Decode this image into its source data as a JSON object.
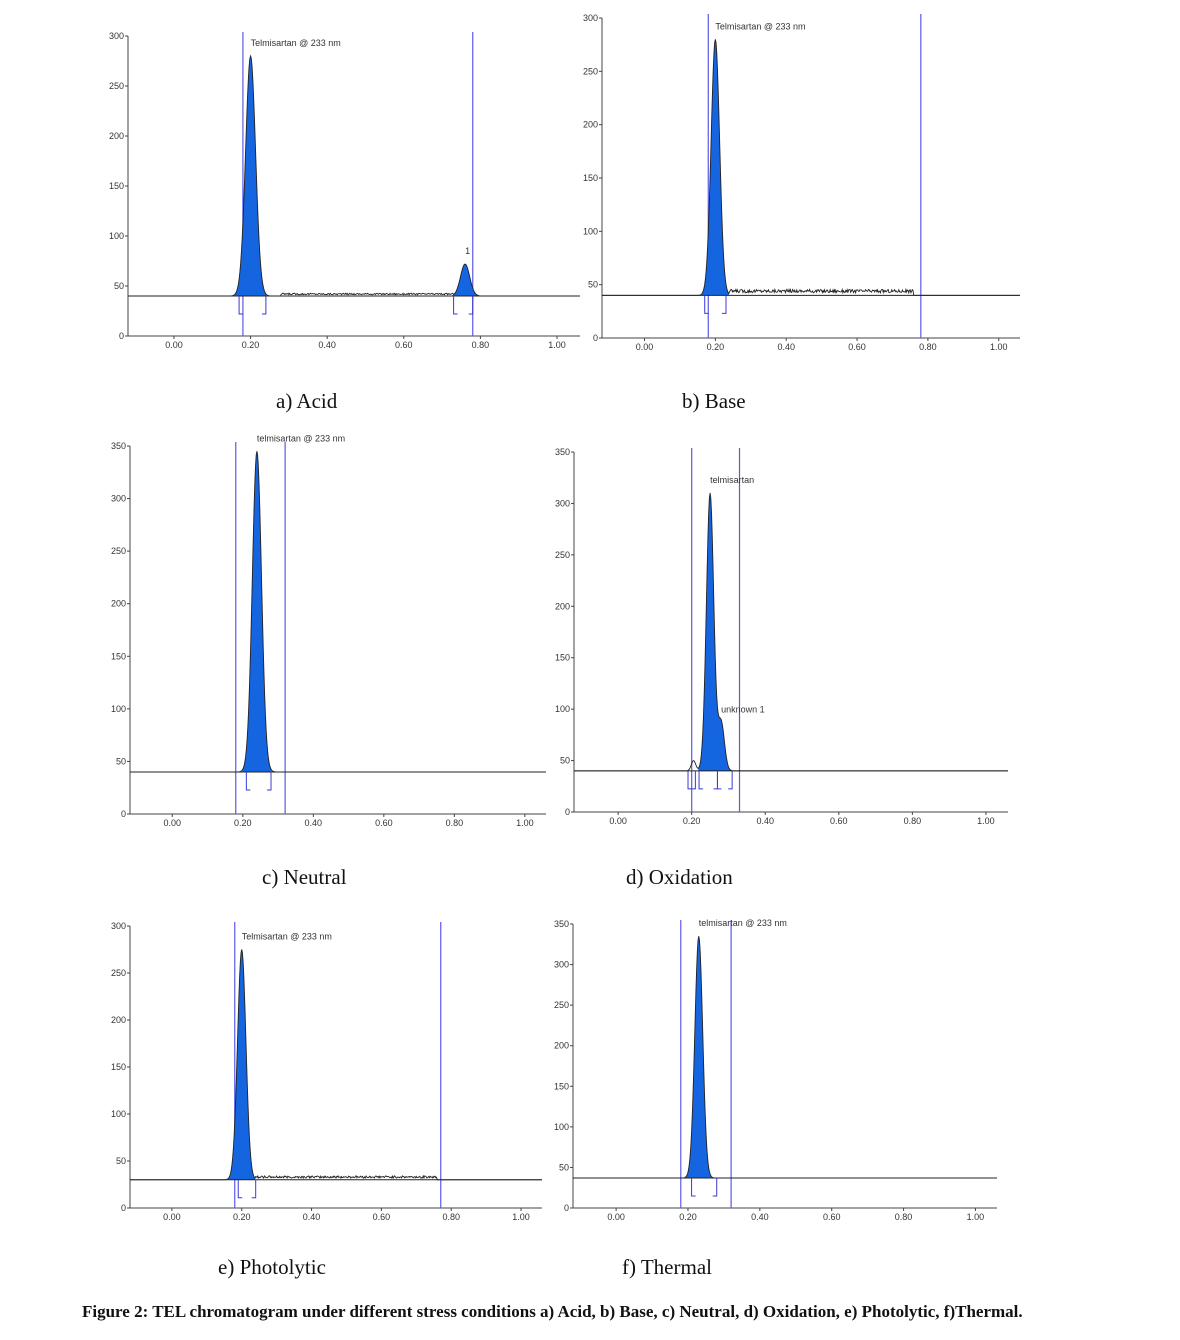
{
  "figure_caption": "Figure 2: TEL chromatogram under different stress conditions a) Acid, b) Base, c) Neutral, d) Oxidation, e) Photolytic, f)Thermal.",
  "colors": {
    "peak_fill": "#1565e0",
    "window_line": "#5a5ae6",
    "trace": "#222222",
    "bracket": "#3a3ad8"
  },
  "chart_data": [
    {
      "id": "acid",
      "type": "line",
      "caption": "a) Acid",
      "xlim": [
        -0.12,
        1.06
      ],
      "ylim": [
        0,
        300
      ],
      "xticks": [
        "0.00",
        "0.20",
        "0.40",
        "0.60",
        "0.80",
        "1.00"
      ],
      "yticks": [
        "0",
        "50",
        "100",
        "150",
        "200",
        "250",
        "300"
      ],
      "baseline": 40,
      "windows": [
        0.18,
        0.78
      ],
      "trace_end": 1.06,
      "noise": [
        0.28,
        0.73,
        42
      ],
      "peaks": [
        {
          "rf": 0.2,
          "height": 280,
          "width": 0.013,
          "label": "Telmisartan @ 233 nm",
          "bracket": [
            0.17,
            0.24
          ]
        },
        {
          "rf": 0.76,
          "height": 72,
          "width": 0.012,
          "label": "1",
          "bracket": [
            0.73,
            0.78
          ]
        }
      ]
    },
    {
      "id": "base",
      "type": "line",
      "caption": "b) Base",
      "xlim": [
        -0.12,
        1.06
      ],
      "ylim": [
        0,
        300
      ],
      "xticks": [
        "0.00",
        "0.20",
        "0.40",
        "0.60",
        "0.80",
        "1.00"
      ],
      "yticks": [
        "0",
        "50",
        "100",
        "150",
        "200",
        "250",
        "300"
      ],
      "baseline": 40,
      "windows": [
        0.18,
        0.78
      ],
      "trace_end": 1.06,
      "noise": [
        0.24,
        0.76,
        44
      ],
      "peaks": [
        {
          "rf": 0.2,
          "height": 280,
          "width": 0.012,
          "label": "Telmisartan @ 233 nm",
          "bracket": [
            0.17,
            0.23
          ]
        }
      ]
    },
    {
      "id": "neutral",
      "type": "line",
      "caption": "c) Neutral",
      "xlim": [
        -0.12,
        1.06
      ],
      "ylim": [
        0,
        350
      ],
      "xticks": [
        "0.00",
        "0.20",
        "0.40",
        "0.60",
        "0.80",
        "1.00"
      ],
      "yticks": [
        "0",
        "50",
        "100",
        "150",
        "200",
        "250",
        "300",
        "350"
      ],
      "baseline": 40,
      "windows": [
        0.18,
        0.32
      ],
      "trace_end": 1.06,
      "noise": null,
      "peaks": [
        {
          "rf": 0.24,
          "height": 345,
          "width": 0.013,
          "label": "telmisartan @ 233 nm",
          "bracket": [
            0.21,
            0.28
          ]
        }
      ]
    },
    {
      "id": "oxidation",
      "type": "line",
      "caption": "d) Oxidation",
      "xlim": [
        -0.12,
        1.06
      ],
      "ylim": [
        0,
        350
      ],
      "xticks": [
        "0.00",
        "0.20",
        "0.40",
        "0.60",
        "0.80",
        "1.00"
      ],
      "yticks": [
        "0",
        "50",
        "100",
        "150",
        "200",
        "250",
        "300",
        "350"
      ],
      "baseline": 40,
      "windows": [
        0.2,
        0.33
      ],
      "trace_end": 1.06,
      "noise": null,
      "peaks": [
        {
          "rf": 0.205,
          "height": 50,
          "width": 0.006,
          "label": "",
          "bracket": [
            0.19,
            0.21
          ],
          "filled": false
        },
        {
          "rf": 0.25,
          "height": 310,
          "width": 0.01,
          "label": "telmisartan",
          "bracket": [
            0.22,
            0.27
          ]
        },
        {
          "rf": 0.28,
          "height": 87,
          "width": 0.009,
          "label": "unknown 1",
          "bracket": [
            0.27,
            0.31
          ]
        }
      ]
    },
    {
      "id": "photolytic",
      "type": "line",
      "caption": "e) Photolytic",
      "xlim": [
        -0.12,
        1.06
      ],
      "ylim": [
        0,
        300
      ],
      "xticks": [
        "0.00",
        "0.20",
        "0.40",
        "0.60",
        "0.80",
        "1.00"
      ],
      "yticks": [
        "0",
        "50",
        "100",
        "150",
        "200",
        "250",
        "300"
      ],
      "baseline": 30,
      "windows": [
        0.18,
        0.77
      ],
      "trace_end": 1.06,
      "noise": [
        0.24,
        0.76,
        33
      ],
      "peaks": [
        {
          "rf": 0.2,
          "height": 275,
          "width": 0.012,
          "label": "Telmisartan @ 233 nm",
          "bracket": [
            0.19,
            0.24
          ]
        }
      ]
    },
    {
      "id": "thermal",
      "type": "line",
      "caption": "f) Thermal",
      "xlim": [
        -0.12,
        1.06
      ],
      "ylim": [
        0,
        350
      ],
      "xticks": [
        "0.00",
        "0.20",
        "0.40",
        "0.60",
        "0.80",
        "1.00"
      ],
      "yticks": [
        "0",
        "50",
        "100",
        "150",
        "200",
        "250",
        "300",
        "350"
      ],
      "baseline": 37,
      "windows": [
        0.18,
        0.32
      ],
      "trace_end": 1.06,
      "noise": null,
      "peaks": [
        {
          "rf": 0.23,
          "height": 335,
          "width": 0.011,
          "label": "telmisartan @ 233 nm",
          "bracket": [
            0.21,
            0.28
          ]
        }
      ]
    }
  ]
}
